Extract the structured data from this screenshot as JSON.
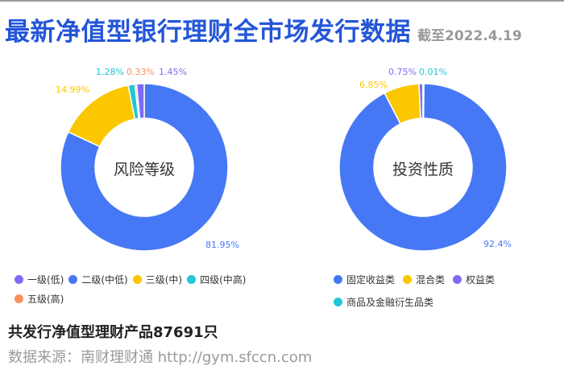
{
  "header": {
    "title": "最新净值型银行理财全市场发行数据",
    "subtitle": "截至2022.4.19"
  },
  "colors": {
    "blue": "#4678f5",
    "yellow": "#fbc700",
    "purple": "#7b6cf6",
    "teal": "#22c7d6",
    "orange": "#fb8f57"
  },
  "chart_data": [
    {
      "type": "pie",
      "subtype": "donut",
      "title": "风险等级",
      "legend_position": "bottom",
      "categories": [
        "一级(低)",
        "二级(中低)",
        "三级(中)",
        "四级(中高)",
        "五级(高)"
      ],
      "values": [
        1.45,
        81.95,
        14.99,
        1.28,
        0.33
      ],
      "labels": [
        "1.45%",
        "81.95%",
        "14.99%",
        "1.28%",
        "0.33%"
      ],
      "colors": [
        "#7b6cf6",
        "#4678f5",
        "#fbc700",
        "#22c7d6",
        "#fb8f57"
      ],
      "draw_order_clockwise_from_top": [
        "二级(中低)",
        "三级(中)",
        "四级(中高)",
        "五级(高)",
        "一级(低)"
      ]
    },
    {
      "type": "pie",
      "subtype": "donut",
      "title": "投资性质",
      "legend_position": "bottom",
      "categories": [
        "固定收益类",
        "混合类",
        "权益类",
        "商品及金融衍生品类"
      ],
      "values": [
        92.4,
        6.85,
        0.75,
        0.01
      ],
      "labels": [
        "92.4%",
        "6.85%",
        "0.75%",
        "0.01%"
      ],
      "colors": [
        "#4678f5",
        "#fbc700",
        "#7b6cf6",
        "#22c7d6"
      ],
      "draw_order_clockwise_from_top": [
        "固定收益类",
        "混合类",
        "权益类",
        "商品及金融衍生品类"
      ]
    }
  ],
  "left_chart": {
    "center_label": "风险等级",
    "labels": {
      "l1": "1.45%",
      "l2": "81.95%",
      "l3": "14.99%",
      "l4": "1.28%",
      "l5": "0.33%"
    },
    "legend": [
      "一级(低)",
      "二级(中低)",
      "三级(中)",
      "四级(中高)",
      "五级(高)"
    ]
  },
  "right_chart": {
    "center_label": "投资性质",
    "labels": {
      "fixed": "92.4%",
      "mixed": "6.85%",
      "equity": "0.75%",
      "commodity": "0.01%"
    },
    "legend": [
      "固定收益类",
      "混合类",
      "权益类",
      "商品及金融衍生品类"
    ]
  },
  "footer": {
    "total": "共发行净值型理财产品87691只",
    "source": "数据来源：南财理财通 http://gym.sfccn.com"
  }
}
